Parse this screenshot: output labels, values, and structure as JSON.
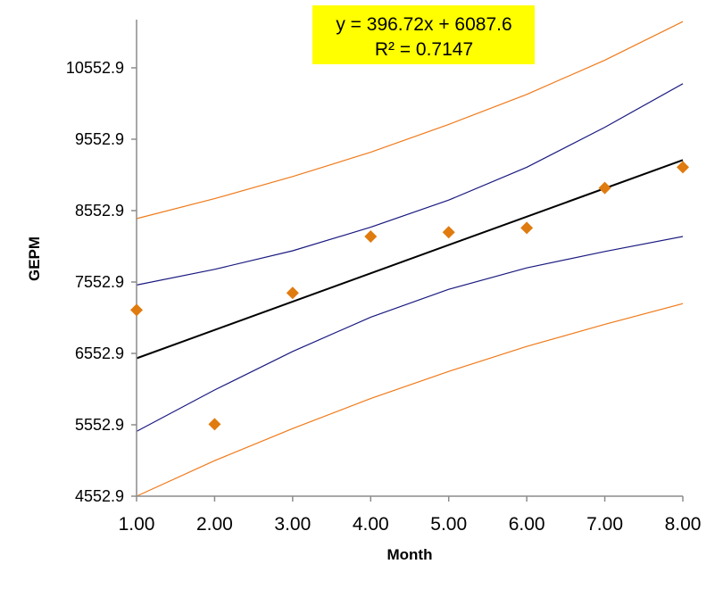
{
  "chart_data": {
    "type": "scatter",
    "xlabel": "Month",
    "ylabel": "GEPM",
    "xlim": [
      1,
      8
    ],
    "ylim": [
      4552.9,
      11200
    ],
    "x_ticks": [
      "1.00",
      "2.00",
      "3.00",
      "4.00",
      "5.00",
      "6.00",
      "7.00",
      "8.00"
    ],
    "y_ticks": [
      "4552.9",
      "5552.9",
      "6552.9",
      "7552.9",
      "8552.9",
      "9552.9",
      "10552.9"
    ],
    "grid": false,
    "annotation": {
      "equation": "y = 396.72x + 6087.6",
      "r_squared": "R² = 0.7147",
      "background": "#ffff00"
    },
    "series": [
      {
        "kind": "points",
        "color": "#e07b10",
        "marker": "diamond",
        "x": [
          1,
          2,
          3,
          4,
          5,
          6,
          7,
          8
        ],
        "y": [
          7160,
          5560,
          7400,
          8190,
          8250,
          8310,
          8870,
          9160
        ]
      },
      {
        "kind": "trendline",
        "color": "#000000",
        "x": [
          1,
          8
        ],
        "y": [
          6484.3,
          9261.4
        ]
      },
      {
        "kind": "confidence-upper",
        "color": "#1a1a80",
        "x": [
          1,
          2,
          3,
          4,
          5,
          6,
          7,
          8
        ],
        "y": [
          7510,
          7730,
          7990,
          8320,
          8700,
          9160,
          9720,
          10330
        ]
      },
      {
        "kind": "confidence-lower",
        "color": "#1a1a80",
        "x": [
          1,
          2,
          3,
          4,
          5,
          6,
          7,
          8
        ],
        "y": [
          5460,
          6040,
          6580,
          7060,
          7450,
          7750,
          7980,
          8190
        ]
      },
      {
        "kind": "prediction-upper",
        "color": "#f07a1a",
        "x": [
          1,
          2,
          3,
          4,
          5,
          6,
          7,
          8
        ],
        "y": [
          8440,
          8720,
          9030,
          9370,
          9760,
          10180,
          10660,
          11200
        ]
      },
      {
        "kind": "prediction-lower",
        "color": "#f07a1a",
        "x": [
          1,
          2,
          3,
          4,
          5,
          6,
          7,
          8
        ],
        "y": [
          4552.9,
          5050,
          5500,
          5920,
          6300,
          6650,
          6960,
          7250
        ]
      }
    ]
  }
}
